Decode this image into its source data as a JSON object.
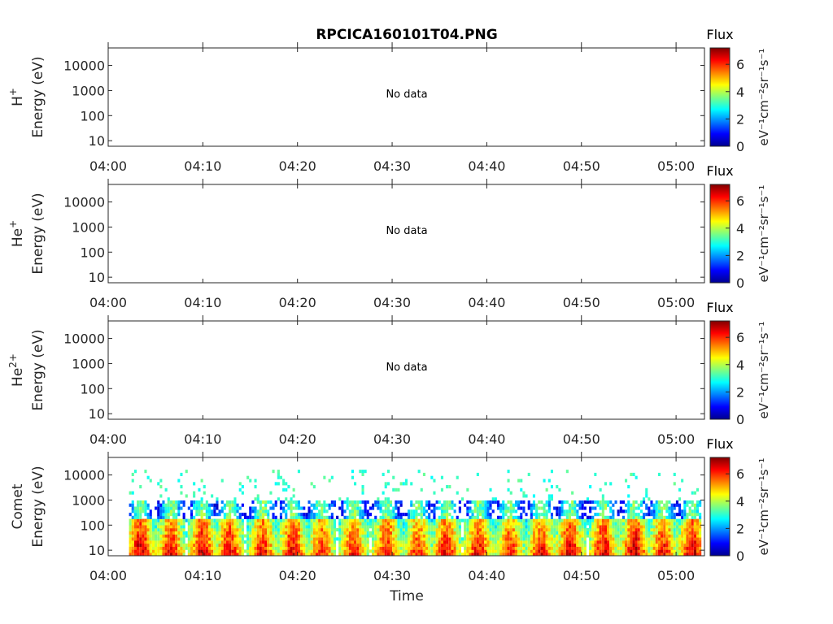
{
  "figure_title": "RPCICA160101T04.PNG",
  "chart_data": [
    {
      "type": "heatmap",
      "species": "H",
      "species_sup": "+",
      "ylabel": "Energy (eV)",
      "yscale": "log",
      "ylim": [
        6,
        50000
      ],
      "yticks": [
        "10",
        "100",
        "1000",
        "10000"
      ],
      "xticks": [
        "04:00",
        "04:10",
        "04:20",
        "04:30",
        "04:40",
        "04:50",
        "05:00"
      ],
      "xlim_minutes": [
        0,
        63
      ],
      "annotation": "No data",
      "colorbar": {
        "label": "Flux",
        "unit": "eV⁻¹cm⁻²sr⁻¹s⁻¹",
        "range": [
          0,
          7.2
        ],
        "ticks": [
          "0",
          "2",
          "4",
          "6"
        ]
      }
    },
    {
      "type": "heatmap",
      "species": "He",
      "species_sup": "+",
      "ylabel": "Energy (eV)",
      "yscale": "log",
      "ylim": [
        6,
        50000
      ],
      "yticks": [
        "10",
        "100",
        "1000",
        "10000"
      ],
      "xticks": [
        "04:00",
        "04:10",
        "04:20",
        "04:30",
        "04:40",
        "04:50",
        "05:00"
      ],
      "xlim_minutes": [
        0,
        63
      ],
      "annotation": "No data",
      "colorbar": {
        "label": "Flux",
        "unit": "eV⁻¹cm⁻²sr⁻¹s⁻¹",
        "range": [
          0,
          7.2
        ],
        "ticks": [
          "0",
          "2",
          "4",
          "6"
        ]
      }
    },
    {
      "type": "heatmap",
      "species": "He",
      "species_sup": "2+",
      "ylabel": "Energy (eV)",
      "yscale": "log",
      "ylim": [
        6,
        50000
      ],
      "yticks": [
        "10",
        "100",
        "1000",
        "10000"
      ],
      "xticks": [
        "04:00",
        "04:10",
        "04:20",
        "04:30",
        "04:40",
        "04:50",
        "05:00"
      ],
      "xlim_minutes": [
        0,
        63
      ],
      "annotation": "No data",
      "colorbar": {
        "label": "Flux",
        "unit": "eV⁻¹cm⁻²sr⁻¹s⁻¹",
        "range": [
          0,
          7.2
        ],
        "ticks": [
          "0",
          "2",
          "4",
          "6"
        ]
      }
    },
    {
      "type": "heatmap",
      "species": "Comet",
      "species_sup": "",
      "ylabel": "Energy (eV)",
      "yscale": "log",
      "ylim": [
        6,
        50000
      ],
      "yticks": [
        "10",
        "100",
        "1000",
        "10000"
      ],
      "xticks": [
        "04:00",
        "04:10",
        "04:20",
        "04:30",
        "04:40",
        "04:50",
        "05:00"
      ],
      "xlim_minutes": [
        0,
        63
      ],
      "xlabel": "Time",
      "annotation": "",
      "data_start_minute": 2.2,
      "data_end_minute": 62.6,
      "bursts": [
        {
          "minute": 3.3,
          "peak_flux": 6.6
        },
        {
          "minute": 6.5,
          "peak_flux": 6.2
        },
        {
          "minute": 9.8,
          "peak_flux": 6.5
        },
        {
          "minute": 12.7,
          "peak_flux": 6.4
        },
        {
          "minute": 16.2,
          "peak_flux": 6.2
        },
        {
          "minute": 19.4,
          "peak_flux": 6.4
        },
        {
          "minute": 22.4,
          "peak_flux": 6.0
        },
        {
          "minute": 25.8,
          "peak_flux": 6.1
        },
        {
          "minute": 29.3,
          "peak_flux": 6.2
        },
        {
          "minute": 32.6,
          "peak_flux": 6.0
        },
        {
          "minute": 35.6,
          "peak_flux": 6.3
        },
        {
          "minute": 39.0,
          "peak_flux": 6.3
        },
        {
          "minute": 42.3,
          "peak_flux": 6.1
        },
        {
          "minute": 45.6,
          "peak_flux": 6.2
        },
        {
          "minute": 48.7,
          "peak_flux": 6.5
        },
        {
          "minute": 52.2,
          "peak_flux": 6.4
        },
        {
          "minute": 55.5,
          "peak_flux": 6.6
        },
        {
          "minute": 58.5,
          "peak_flux": 6.2
        },
        {
          "minute": 61.6,
          "peak_flux": 6.5
        }
      ],
      "colorbar": {
        "label": "Flux",
        "unit": "eV⁻¹cm⁻²sr⁻¹s⁻¹",
        "range": [
          0,
          7.2
        ],
        "ticks": [
          "0",
          "2",
          "4",
          "6"
        ]
      }
    }
  ]
}
